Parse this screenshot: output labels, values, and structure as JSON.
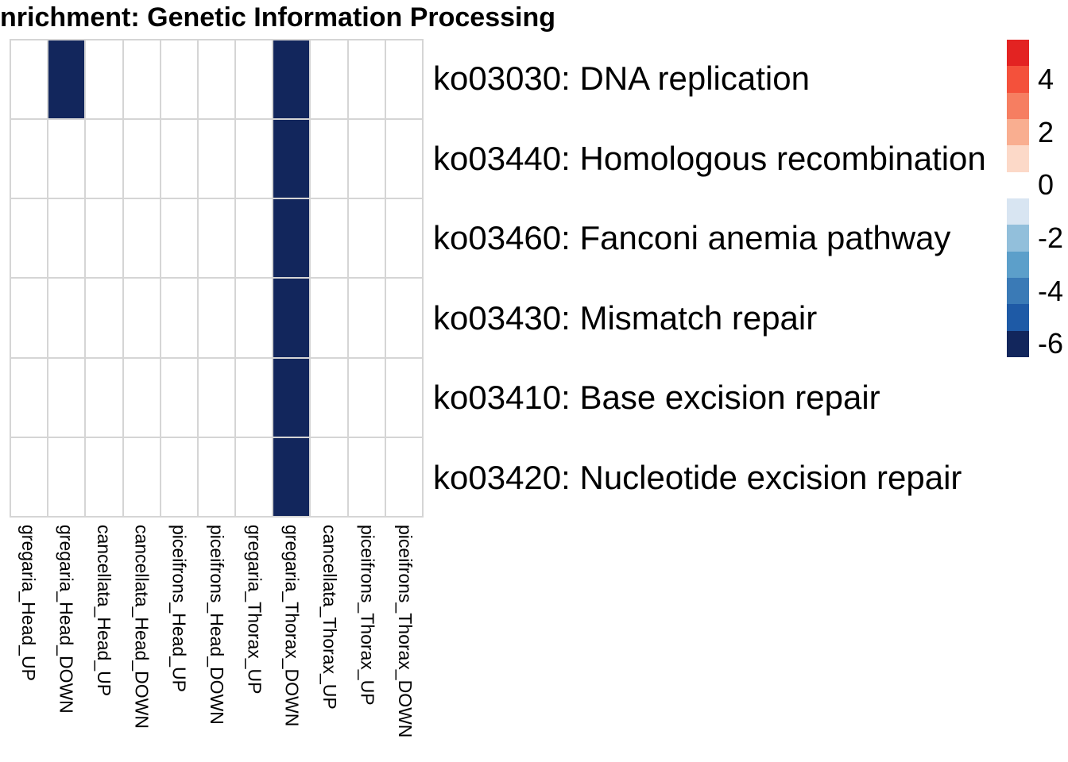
{
  "title": "nrichment: Genetic Information Processing",
  "chart_data": {
    "type": "heatmap",
    "title": "nrichment: Genetic Information Processing",
    "x_categories": [
      "gregaria_Head_UP",
      "gregaria_Head_DOWN",
      "cancellata_Head_UP",
      "cancellata_Head_DOWN",
      "piceifrons_Head_UP",
      "piceifrons_Head_DOWN",
      "gregaria_Thorax_UP",
      "gregaria_Thorax_DOWN",
      "cancellata_Thorax_UP",
      "piceifrons_Thorax_UP",
      "piceifrons_Thorax_DOWN"
    ],
    "y_categories": [
      "ko03030: DNA replication",
      "ko03440: Homologous recombination",
      "ko03460: Fanconi anemia pathway",
      "ko03430: Mismatch repair",
      "ko03410: Base excision repair",
      "ko03420: Nucleotide excision repair"
    ],
    "values": [
      [
        null,
        -6,
        null,
        null,
        null,
        null,
        null,
        -6,
        null,
        null,
        null
      ],
      [
        null,
        null,
        null,
        null,
        null,
        null,
        null,
        -6,
        null,
        null,
        null
      ],
      [
        null,
        null,
        null,
        null,
        null,
        null,
        null,
        -6,
        null,
        null,
        null
      ],
      [
        null,
        null,
        null,
        null,
        null,
        null,
        null,
        -6,
        null,
        null,
        null
      ],
      [
        null,
        null,
        null,
        null,
        null,
        null,
        null,
        -6,
        null,
        null,
        null
      ],
      [
        null,
        null,
        null,
        null,
        null,
        null,
        null,
        -6,
        null,
        null,
        null
      ]
    ],
    "legend": {
      "position": "right",
      "band_values": [
        5,
        4,
        3,
        2,
        1,
        0,
        -1,
        -2,
        -3,
        -4,
        -5,
        -6
      ],
      "band_colors": [
        "#E32322",
        "#F4513B",
        "#F67E61",
        "#F9AE90",
        "#FCD9C8",
        "#FFFFFF",
        "#D8E5F2",
        "#92BFDB",
        "#5C9FCA",
        "#3A7AB6",
        "#1E5AA6",
        "#12265C"
      ],
      "tick_labels": [
        "4",
        "2",
        "0",
        "-2",
        "-4",
        "-6"
      ],
      "tick_values": [
        4,
        2,
        0,
        -2,
        -4,
        -6
      ]
    },
    "colors": {
      "cell_empty": "#FFFFFF",
      "cell_filled": "#12265C",
      "gridline": "#D5D5D5",
      "text": "#000000"
    },
    "grid_on": true
  }
}
